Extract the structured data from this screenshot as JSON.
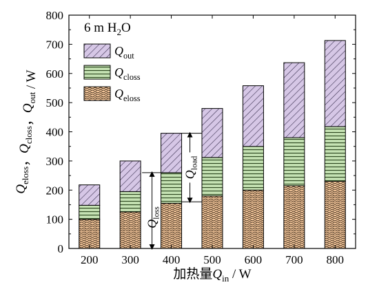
{
  "chart_data": {
    "type": "bar",
    "stacked": true,
    "annotation": {
      "prefix": "6 m H",
      "sub": "2",
      "suffix": "O"
    },
    "xlabel": {
      "prefix": "加热量",
      "q": "Q",
      "sub": "in",
      "suffix": " / W"
    },
    "ylabel": [
      {
        "q": "Q",
        "sub": "eloss"
      },
      {
        "sep": "，"
      },
      {
        "q": "Q",
        "sub": "closs"
      },
      {
        "sep": "，"
      },
      {
        "q": "Q",
        "sub": "out"
      },
      {
        "sep": " / W"
      }
    ],
    "ylim": [
      0,
      800
    ],
    "yticks": [
      0,
      100,
      200,
      300,
      400,
      500,
      600,
      700,
      800
    ],
    "categories": [
      "200",
      "300",
      "400",
      "500",
      "600",
      "700",
      "800"
    ],
    "series": [
      {
        "key": "eloss",
        "legend_q": "Q",
        "legend_sub": "eloss",
        "color": "#f6c89c",
        "values": [
          100,
          125,
          155,
          180,
          200,
          215,
          230
        ]
      },
      {
        "key": "closs",
        "legend_q": "Q",
        "legend_sub": "closs",
        "color": "#c6e3b4",
        "values": [
          48,
          70,
          105,
          132,
          150,
          165,
          188
        ]
      },
      {
        "key": "out",
        "legend_q": "Q",
        "legend_sub": "out",
        "color": "#d6c7e6",
        "values": [
          70,
          105,
          135,
          168,
          208,
          257,
          295
        ]
      }
    ],
    "bracket_annotations": {
      "qloss": {
        "q": "Q",
        "sub": "loss"
      },
      "qload": {
        "q": "Q",
        "sub": "load"
      }
    }
  }
}
